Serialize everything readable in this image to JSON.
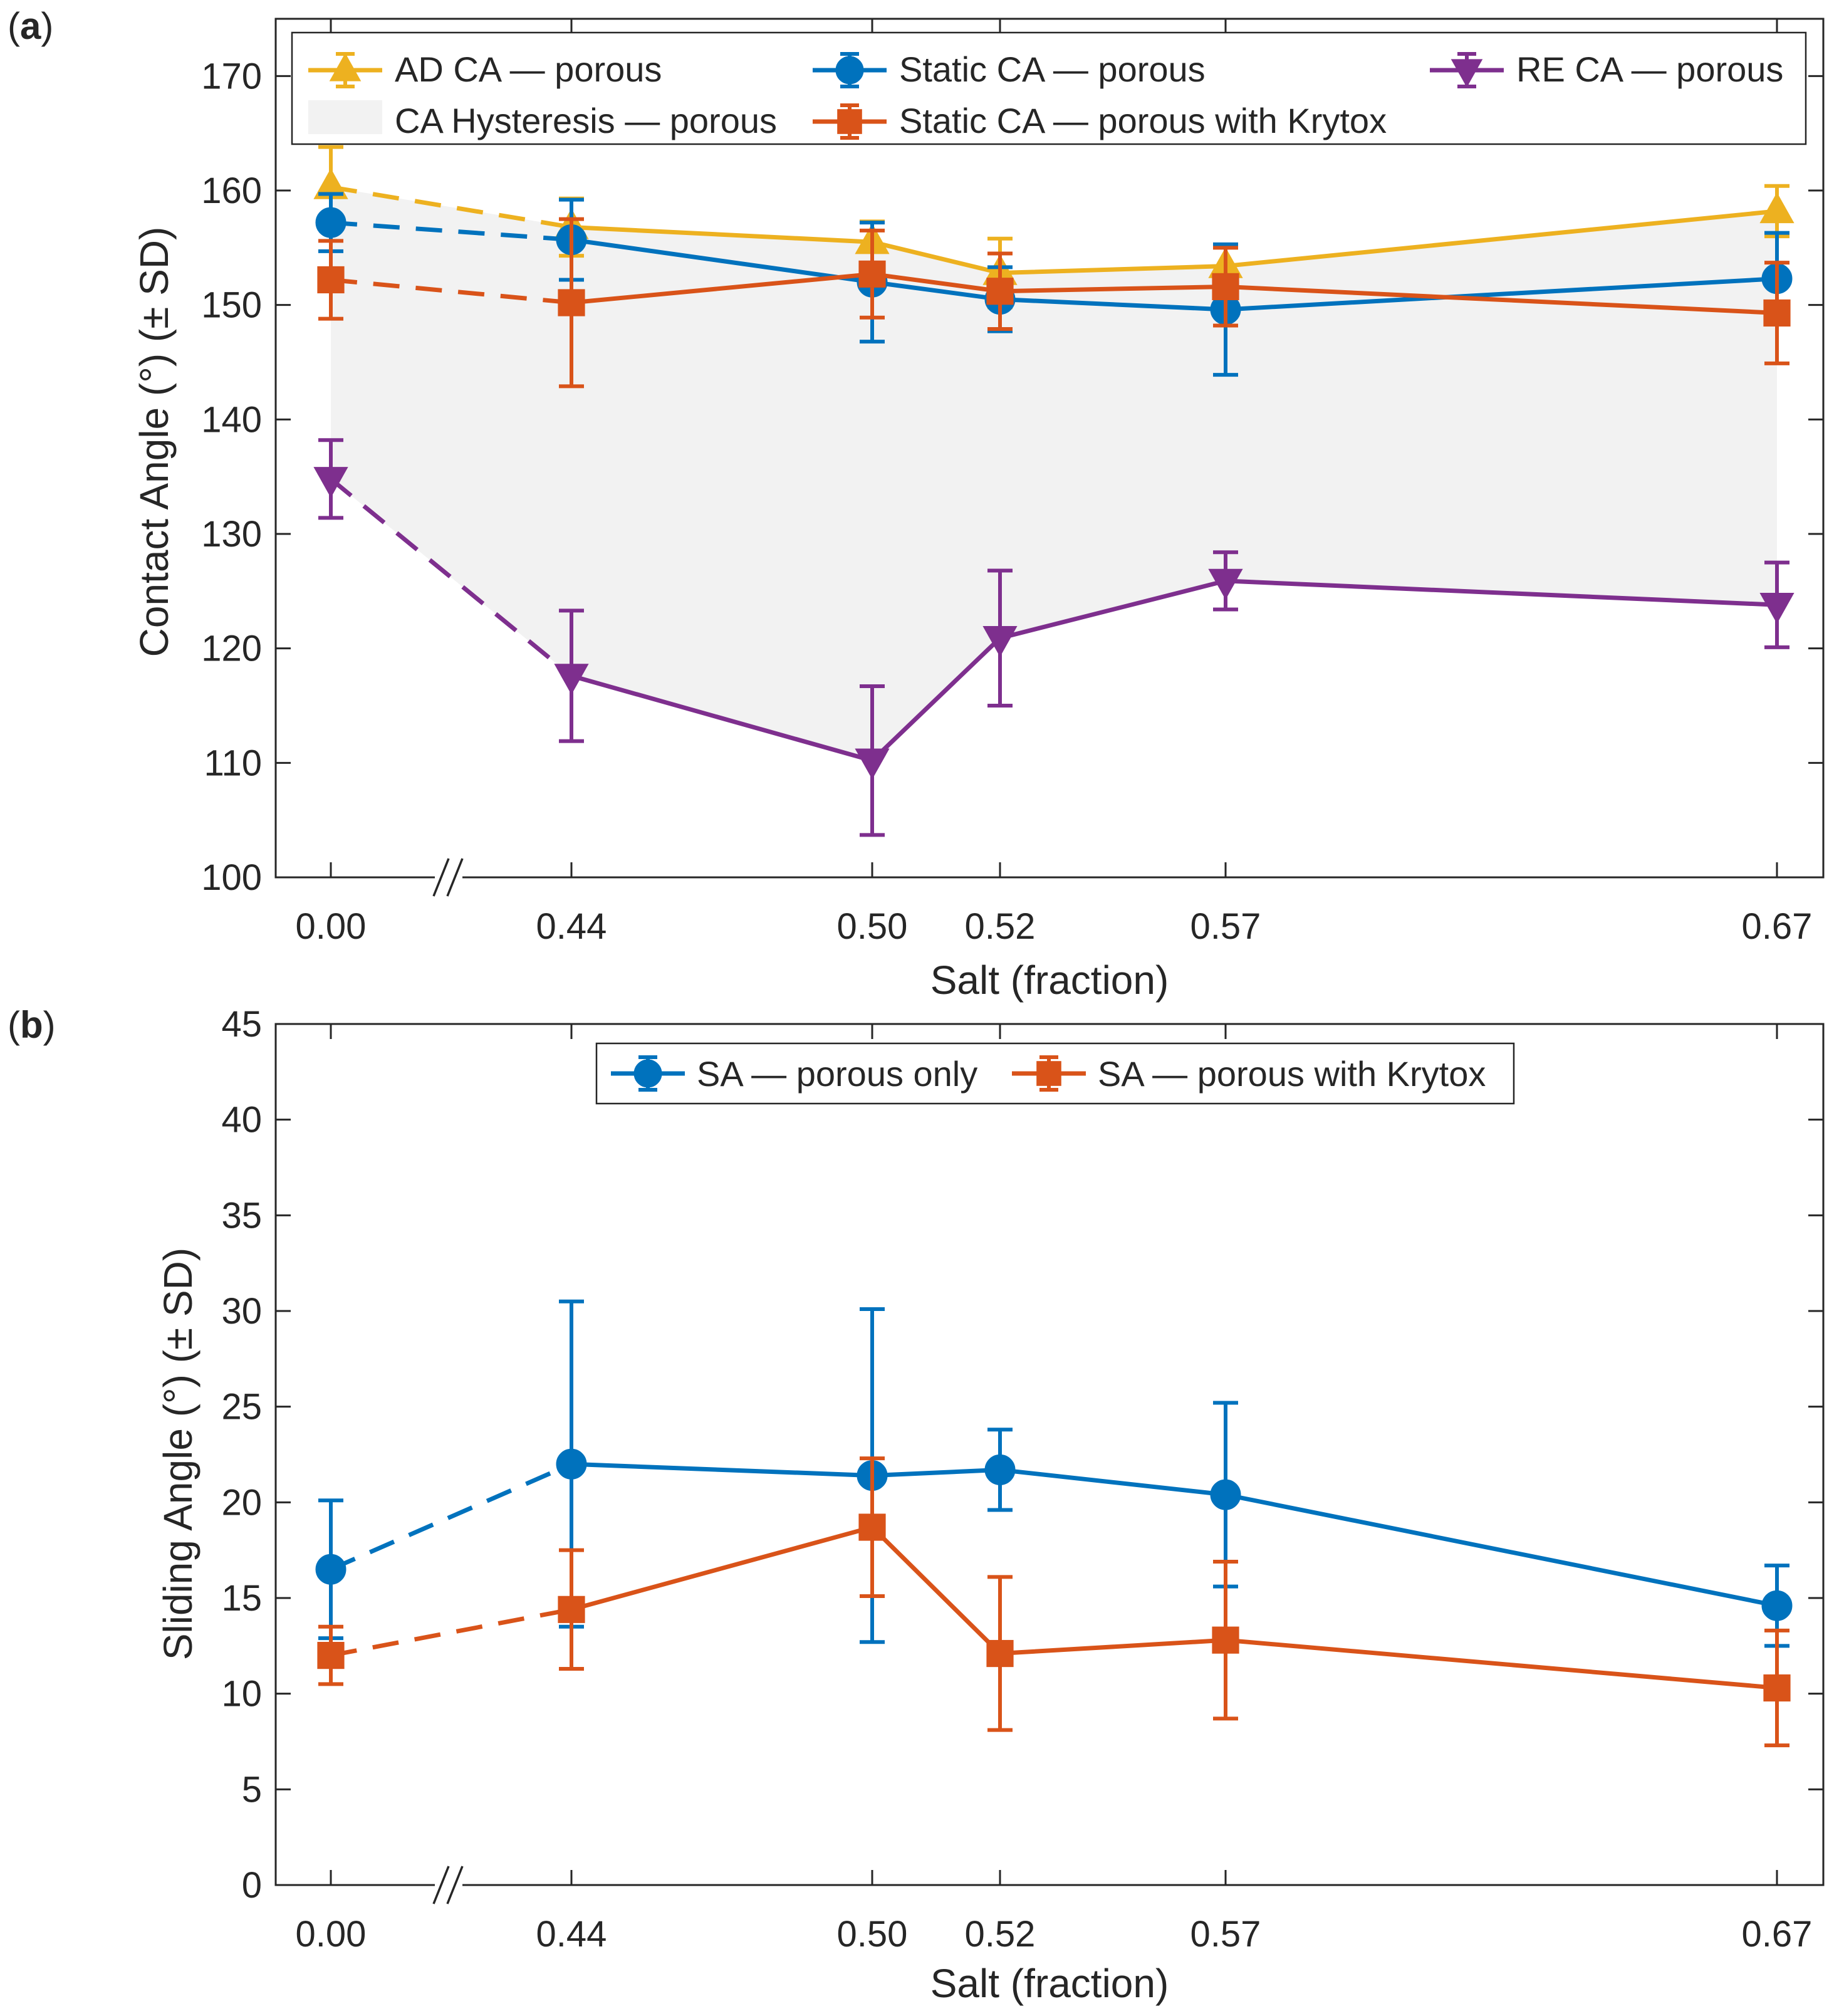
{
  "chart_data": [
    {
      "type": "line",
      "panel_label": "(a)",
      "panel_letter": "a",
      "xlabel": "Salt (fraction)",
      "ylabel": "Contact Angle (°) (± SD)",
      "ylim": [
        100,
        175
      ],
      "yticks": [
        100,
        110,
        120,
        130,
        140,
        150,
        160,
        170
      ],
      "xtick_labels": [
        "0.00",
        "0.44",
        "0.50",
        "0.52",
        "0.57",
        "0.67"
      ],
      "axis_break": "//",
      "legend_position": "top",
      "series": [
        {
          "name": "AD CA — porous",
          "color": "#EDB120",
          "marker": "triangle-up",
          "values": [
            160.3,
            156.8,
            155.5,
            152.8,
            153.4,
            158.2
          ],
          "errors": [
            3.5,
            2.5,
            1.8,
            3.0,
            1.7,
            2.2
          ]
        },
        {
          "name": "Static CA — porous",
          "color": "#0072BD",
          "marker": "circle",
          "values": [
            157.2,
            155.7,
            152.0,
            150.5,
            149.6,
            152.3
          ],
          "errors": [
            2.5,
            3.5,
            5.2,
            2.8,
            5.7,
            4.0
          ]
        },
        {
          "name": "RE CA — porous",
          "color": "#7E2F8E",
          "marker": "triangle-down",
          "values": [
            134.8,
            117.6,
            110.2,
            120.9,
            125.9,
            123.8
          ],
          "errors": [
            3.4,
            5.7,
            6.5,
            5.9,
            2.5,
            3.7
          ]
        },
        {
          "name": "Static CA — porous with Krytox",
          "color": "#D95319",
          "marker": "square",
          "values": [
            152.2,
            150.2,
            152.7,
            151.2,
            151.6,
            149.3
          ],
          "errors": [
            3.4,
            7.3,
            3.8,
            3.3,
            3.4,
            4.4
          ]
        }
      ],
      "shaded_region": {
        "name": "CA Hysteresis — porous",
        "color": "#F2F2F2",
        "between": [
          "AD CA — porous",
          "RE CA — porous"
        ]
      }
    },
    {
      "type": "line",
      "panel_label": "(b)",
      "panel_letter": "b",
      "xlabel": "Salt (fraction)",
      "ylabel": "Sliding Angle (°) (± SD)",
      "ylim": [
        0,
        45
      ],
      "yticks": [
        0,
        5,
        10,
        15,
        20,
        25,
        30,
        35,
        40,
        45
      ],
      "xtick_labels": [
        "0.00",
        "0.44",
        "0.50",
        "0.52",
        "0.57",
        "0.67"
      ],
      "axis_break": "//",
      "legend_position": "top",
      "series": [
        {
          "name": "SA — porous only",
          "color": "#0072BD",
          "marker": "circle",
          "values": [
            16.5,
            22.0,
            21.4,
            21.7,
            20.4,
            14.6
          ],
          "errors": [
            3.6,
            8.5,
            8.7,
            2.1,
            4.8,
            2.1
          ]
        },
        {
          "name": "SA — porous with Krytox",
          "color": "#D95319",
          "marker": "square",
          "values": [
            12.0,
            14.4,
            18.7,
            12.1,
            12.8,
            10.3
          ],
          "errors": [
            1.5,
            3.1,
            3.6,
            4.0,
            4.1,
            3.0
          ]
        }
      ]
    }
  ]
}
